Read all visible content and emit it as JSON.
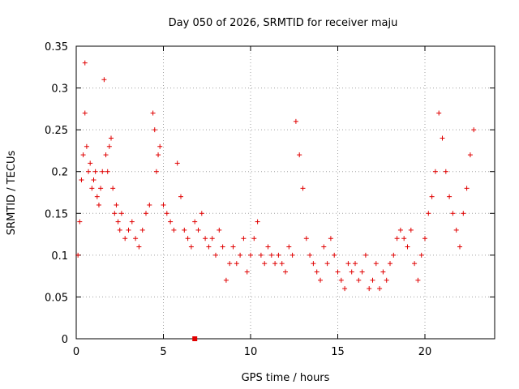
{
  "chart_data": {
    "type": "scatter",
    "title": "Day 050 of 2026, SRMTID for receiver maju",
    "xlabel": "GPS time / hours",
    "ylabel": "SRMTID / TECUs",
    "xlim": [
      0,
      24
    ],
    "ylim": [
      0,
      0.35
    ],
    "x_ticks": [
      0,
      5,
      10,
      15,
      20
    ],
    "x_tick_labels": [
      "0",
      "5",
      "10",
      "15",
      "20"
    ],
    "y_ticks": [
      0,
      0.05,
      0.1,
      0.15,
      0.2,
      0.25,
      0.3,
      0.35
    ],
    "y_tick_labels": [
      "0",
      "0.05",
      "0.1",
      "0.15",
      "0.2",
      "0.25",
      "0.3",
      "0.35"
    ],
    "grid": true,
    "marker": "+",
    "color": "#e00000",
    "series": [
      {
        "name": "SRMTID",
        "x": [
          0.1,
          0.2,
          0.3,
          0.4,
          0.5,
          0.5,
          0.6,
          0.7,
          0.8,
          0.9,
          1.0,
          1.1,
          1.2,
          1.3,
          1.4,
          1.5,
          1.6,
          1.7,
          1.8,
          1.9,
          2.0,
          2.1,
          2.2,
          2.3,
          2.4,
          2.5,
          2.6,
          2.8,
          3.0,
          3.2,
          3.4,
          3.6,
          3.8,
          4.0,
          4.2,
          4.4,
          4.5,
          4.6,
          4.7,
          4.8,
          5.0,
          5.2,
          5.4,
          5.6,
          5.8,
          6.0,
          6.2,
          6.4,
          6.6,
          6.8,
          7.0,
          7.2,
          7.4,
          7.6,
          7.8,
          8.0,
          8.2,
          8.4,
          8.6,
          8.8,
          9.0,
          9.2,
          9.4,
          9.6,
          9.8,
          10.0,
          10.2,
          10.4,
          10.6,
          10.8,
          11.0,
          11.2,
          11.4,
          11.6,
          11.8,
          12.0,
          12.2,
          12.4,
          12.6,
          12.8,
          13.0,
          13.2,
          13.4,
          13.6,
          13.8,
          14.0,
          14.2,
          14.4,
          14.6,
          14.8,
          15.0,
          15.2,
          15.4,
          15.6,
          15.8,
          16.0,
          16.2,
          16.4,
          16.6,
          16.8,
          17.0,
          17.2,
          17.4,
          17.6,
          17.8,
          18.0,
          18.2,
          18.4,
          18.6,
          18.8,
          19.0,
          19.2,
          19.4,
          19.6,
          19.8,
          20.0,
          20.2,
          20.4,
          20.6,
          20.8,
          21.0,
          21.2,
          21.4,
          21.6,
          21.8,
          22.0,
          22.2,
          22.4,
          22.6,
          22.8
        ],
        "y": [
          0.1,
          0.14,
          0.19,
          0.22,
          0.33,
          0.27,
          0.23,
          0.2,
          0.21,
          0.18,
          0.19,
          0.2,
          0.17,
          0.16,
          0.18,
          0.2,
          0.31,
          0.22,
          0.2,
          0.23,
          0.24,
          0.18,
          0.15,
          0.16,
          0.14,
          0.13,
          0.15,
          0.12,
          0.13,
          0.14,
          0.12,
          0.11,
          0.13,
          0.15,
          0.16,
          0.27,
          0.25,
          0.2,
          0.22,
          0.23,
          0.16,
          0.15,
          0.14,
          0.13,
          0.21,
          0.17,
          0.13,
          0.12,
          0.11,
          0.14,
          0.13,
          0.15,
          0.12,
          0.11,
          0.12,
          0.1,
          0.13,
          0.11,
          0.07,
          0.09,
          0.11,
          0.09,
          0.1,
          0.12,
          0.08,
          0.1,
          0.12,
          0.14,
          0.1,
          0.09,
          0.11,
          0.1,
          0.09,
          0.1,
          0.09,
          0.08,
          0.11,
          0.1,
          0.26,
          0.22,
          0.18,
          0.12,
          0.1,
          0.09,
          0.08,
          0.07,
          0.11,
          0.09,
          0.12,
          0.1,
          0.08,
          0.07,
          0.06,
          0.09,
          0.08,
          0.09,
          0.07,
          0.08,
          0.1,
          0.06,
          0.07,
          0.09,
          0.06,
          0.08,
          0.07,
          0.09,
          0.1,
          0.12,
          0.13,
          0.12,
          0.11,
          0.13,
          0.09,
          0.07,
          0.1,
          0.12,
          0.15,
          0.17,
          0.2,
          0.27,
          0.24,
          0.2,
          0.17,
          0.15,
          0.13,
          0.11,
          0.15,
          0.18,
          0.22,
          0.25
        ]
      }
    ],
    "outliers": [
      {
        "x": 6.8,
        "y": 0.0
      }
    ]
  }
}
